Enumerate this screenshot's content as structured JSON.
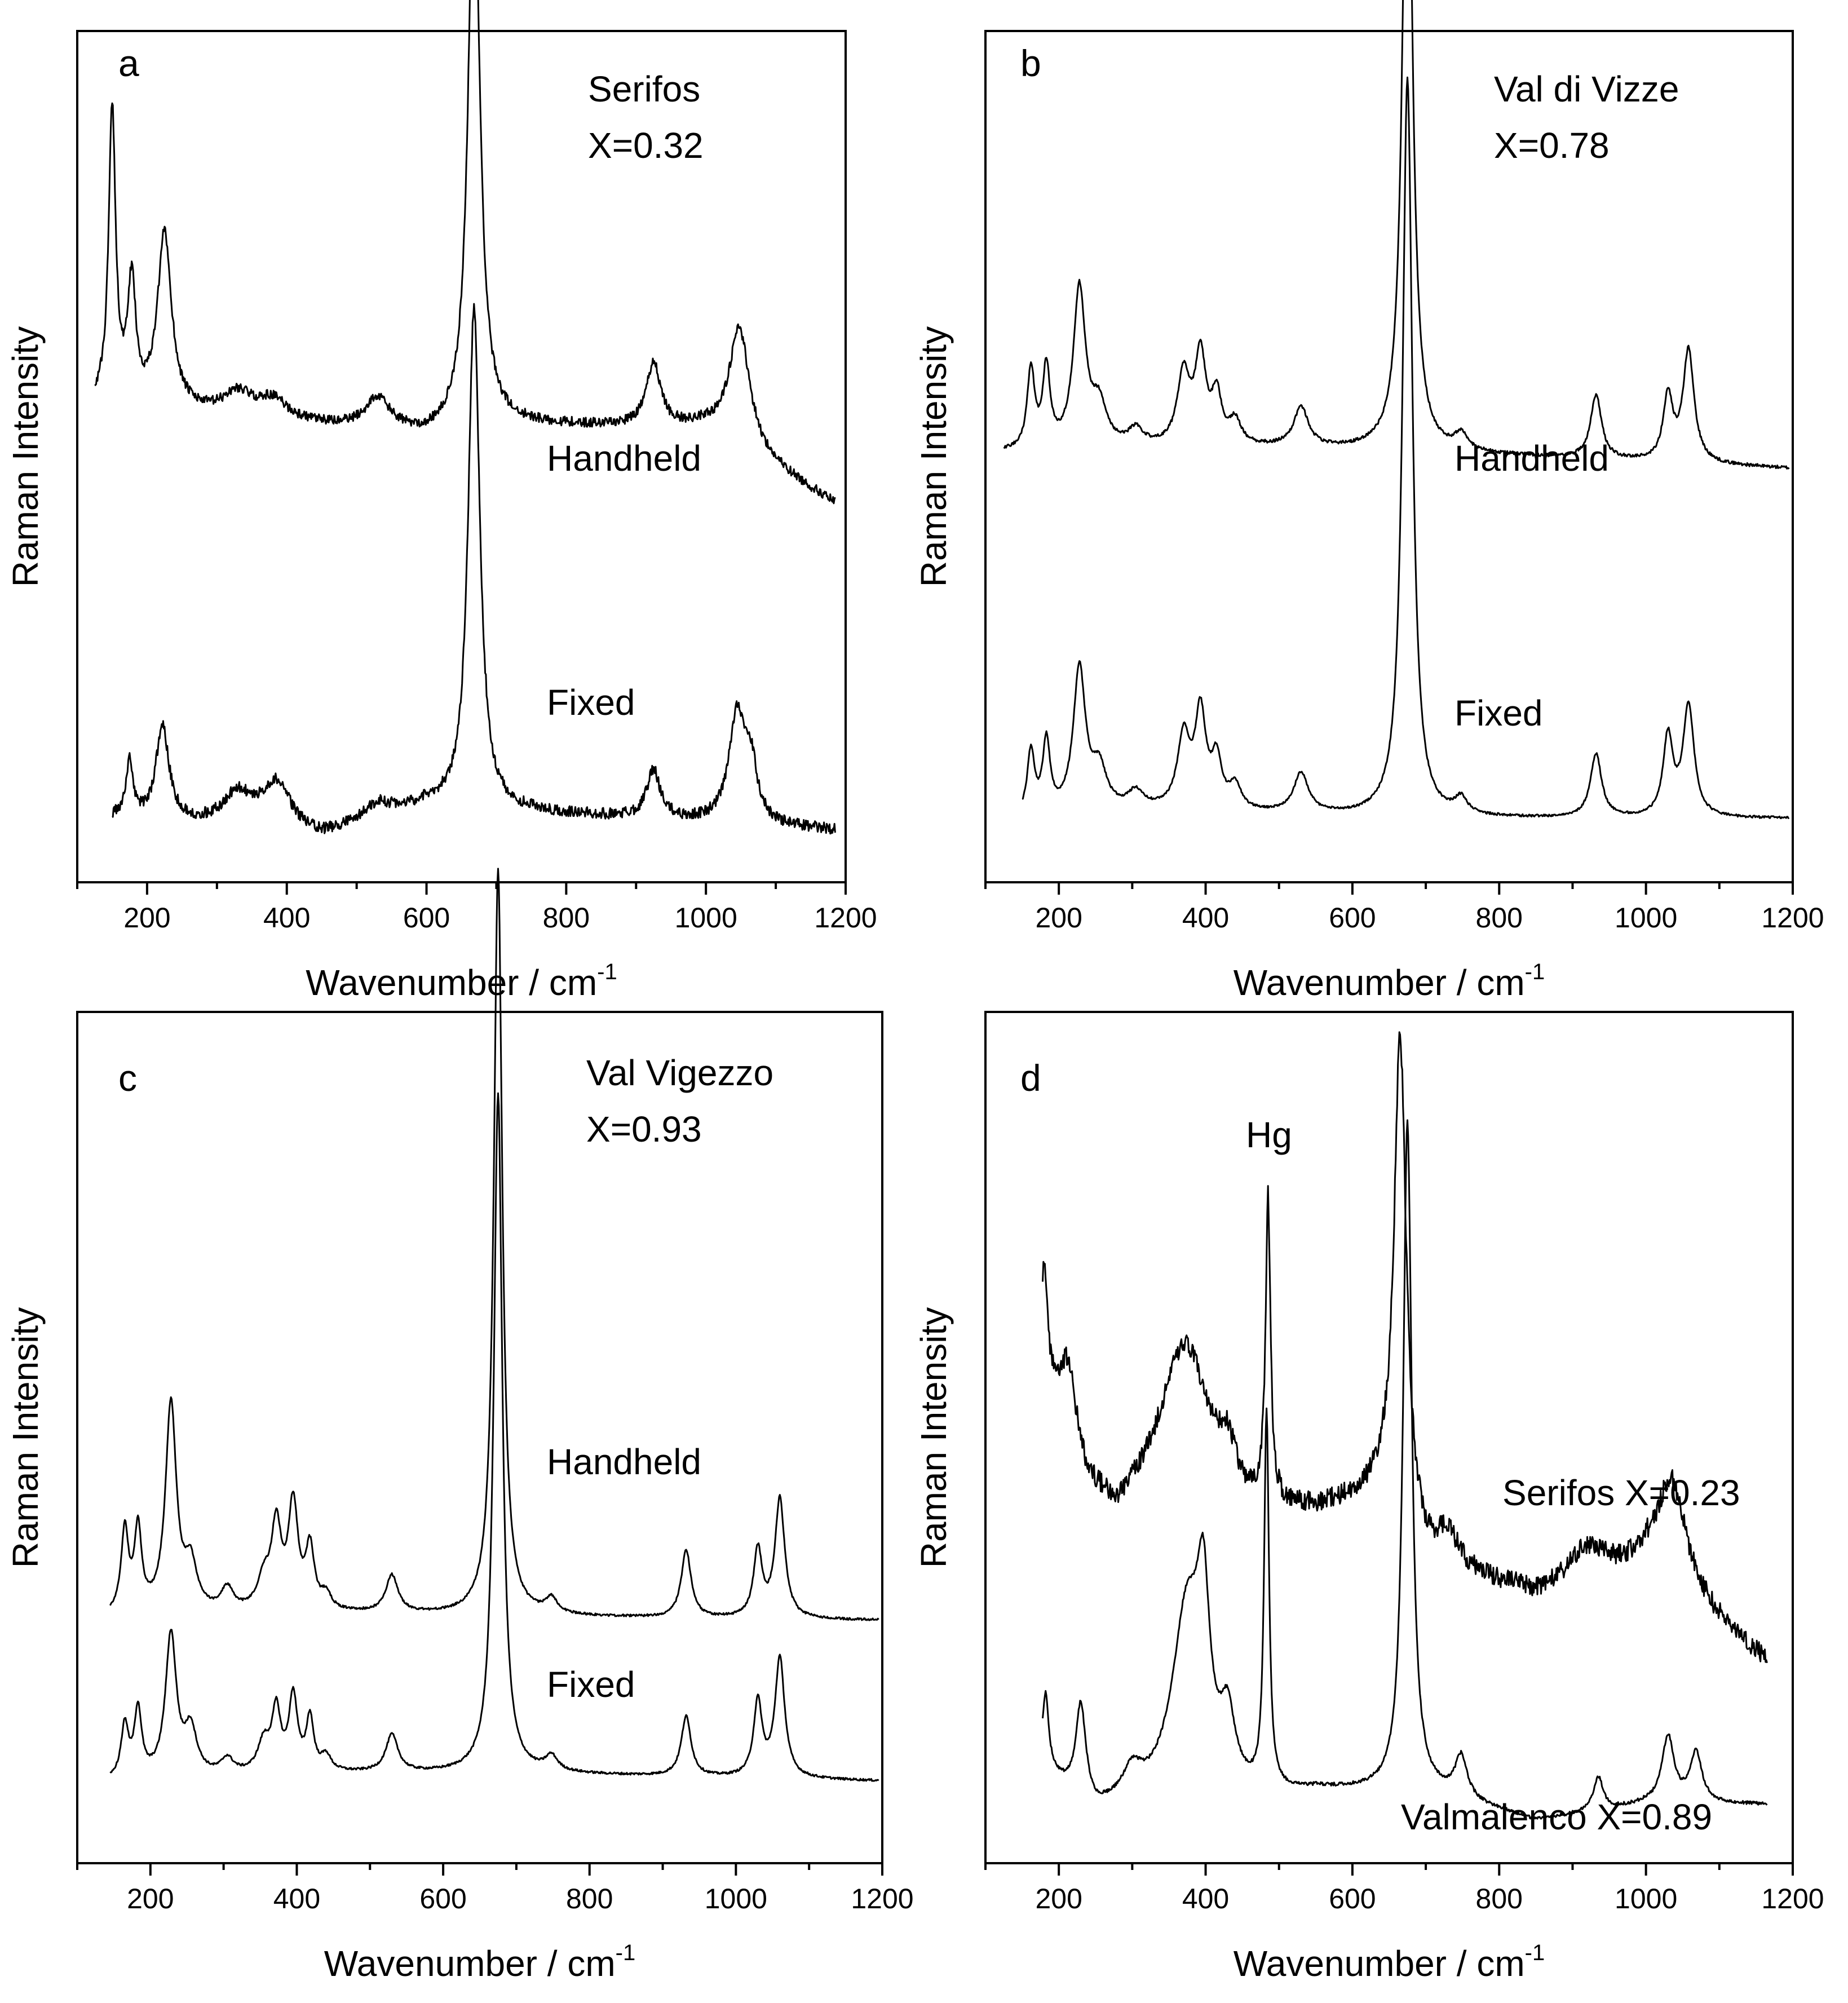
{
  "colors": {
    "line": "#000000",
    "background": "#ffffff"
  },
  "chart_data": [
    {
      "panel": "a",
      "type": "line",
      "xlabel": "Wavenumber / cm",
      "xlabel_sup": "-1",
      "ylabel": "Raman Intensity",
      "xlim": [
        100,
        1200
      ],
      "xticks": [
        200,
        400,
        600,
        800,
        1000,
        1200
      ],
      "annotations": [
        "Serifos",
        "X=0.32"
      ],
      "series": [
        {
          "name": "Handheld",
          "x_range": [
            125,
            1185
          ],
          "noise": 0.006,
          "baseline": [
            [
              125,
              0.58
            ],
            [
              300,
              0.565
            ],
            [
              600,
              0.54
            ],
            [
              700,
              0.555
            ],
            [
              1000,
              0.55
            ],
            [
              1185,
              0.455
            ]
          ],
          "peaks": [
            [
              150,
              0.37,
              6
            ],
            [
              178,
              0.15,
              7
            ],
            [
              225,
              0.22,
              12
            ],
            [
              330,
              0.03,
              25
            ],
            [
              380,
              0.025,
              25
            ],
            [
              530,
              0.04,
              22
            ],
            [
              668,
              0.73,
              10
            ],
            [
              925,
              0.08,
              12
            ],
            [
              1048,
              0.15,
              18
            ]
          ]
        },
        {
          "name": "Fixed",
          "x_range": [
            150,
            1185
          ],
          "noise": 0.007,
          "baseline": [
            [
              150,
              0.06
            ],
            [
              300,
              0.05
            ],
            [
              450,
              0.035
            ],
            [
              600,
              0.075
            ],
            [
              700,
              0.07
            ],
            [
              1185,
              0.045
            ]
          ],
          "peaks": [
            [
              175,
              0.07,
              6
            ],
            [
              222,
              0.12,
              11
            ],
            [
              330,
              0.04,
              25
            ],
            [
              385,
              0.06,
              25
            ],
            [
              530,
              0.02,
              25
            ],
            [
              668,
              0.63,
              10
            ],
            [
              925,
              0.06,
              12
            ],
            [
              1045,
              0.14,
              14
            ],
            [
              1065,
              0.06,
              10
            ]
          ]
        }
      ]
    },
    {
      "panel": "b",
      "type": "line",
      "xlabel": "Wavenumber / cm",
      "xlabel_sup": "-1",
      "ylabel": "Raman Intensity",
      "xlim": [
        100,
        1200
      ],
      "xticks": [
        200,
        400,
        600,
        800,
        1000,
        1200
      ],
      "annotations": [
        "Val di Vizze",
        "X=0.78"
      ],
      "series": [
        {
          "name": "Handheld",
          "x_range": [
            125,
            1195
          ],
          "noise": 0.002,
          "baseline": [
            [
              125,
              0.52
            ],
            [
              300,
              0.525
            ],
            [
              500,
              0.525
            ],
            [
              700,
              0.52
            ],
            [
              1195,
              0.5
            ]
          ],
          "peaks": [
            [
              162,
              0.1,
              6
            ],
            [
              183,
              0.1,
              6
            ],
            [
              228,
              0.2,
              10
            ],
            [
              255,
              0.05,
              12
            ],
            [
              305,
              0.02,
              12
            ],
            [
              370,
              0.09,
              10
            ],
            [
              393,
              0.11,
              9
            ],
            [
              415,
              0.06,
              8
            ],
            [
              440,
              0.03,
              10
            ],
            [
              530,
              0.05,
              12
            ],
            [
              675,
              0.9,
              8
            ],
            [
              748,
              0.02,
              10
            ],
            [
              932,
              0.08,
              9
            ],
            [
              1030,
              0.08,
              8
            ],
            [
              1058,
              0.14,
              9
            ]
          ]
        },
        {
          "name": "Fixed",
          "x_range": [
            150,
            1195
          ],
          "noise": 0.0015,
          "baseline": [
            [
              150,
              0.06
            ],
            [
              300,
              0.07
            ],
            [
              500,
              0.065
            ],
            [
              700,
              0.06
            ],
            [
              1195,
              0.06
            ]
          ],
          "peaks": [
            [
              162,
              0.08,
              6
            ],
            [
              183,
              0.09,
              6
            ],
            [
              228,
              0.18,
              10
            ],
            [
              255,
              0.05,
              12
            ],
            [
              305,
              0.02,
              12
            ],
            [
              370,
              0.09,
              10
            ],
            [
              393,
              0.12,
              9
            ],
            [
              415,
              0.06,
              8
            ],
            [
              440,
              0.03,
              10
            ],
            [
              530,
              0.05,
              12
            ],
            [
              675,
              0.93,
              8
            ],
            [
              748,
              0.02,
              10
            ],
            [
              932,
              0.08,
              9
            ],
            [
              1030,
              0.1,
              8
            ],
            [
              1058,
              0.14,
              9
            ]
          ]
        }
      ]
    },
    {
      "panel": "c",
      "type": "line",
      "xlabel": "Wavenumber / cm",
      "xlabel_sup": "-1",
      "ylabel": "Raman Intensity",
      "xlim": [
        100,
        1200
      ],
      "xticks": [
        200,
        400,
        600,
        800,
        1000,
        1200
      ],
      "annotations": [
        "Val Vigezzo",
        "X=0.93"
      ],
      "series": [
        {
          "name": "Handheld",
          "x_range": [
            145,
            1195
          ],
          "noise": 0.0015,
          "baseline": [
            [
              145,
              0.31
            ],
            [
              400,
              0.315
            ],
            [
              700,
              0.31
            ],
            [
              1195,
              0.305
            ]
          ],
          "peaks": [
            [
              165,
              0.11,
              6
            ],
            [
              183,
              0.11,
              6
            ],
            [
              228,
              0.28,
              9
            ],
            [
              255,
              0.06,
              10
            ],
            [
              305,
              0.03,
              10
            ],
            [
              355,
              0.04,
              10
            ],
            [
              372,
              0.11,
              8
            ],
            [
              395,
              0.14,
              8
            ],
            [
              418,
              0.08,
              7
            ],
            [
              440,
              0.02,
              8
            ],
            [
              530,
              0.05,
              10
            ],
            [
              675,
              1.0,
              7
            ],
            [
              748,
              0.02,
              10
            ],
            [
              932,
              0.09,
              8
            ],
            [
              1030,
              0.09,
              7
            ],
            [
              1060,
              0.16,
              8
            ]
          ]
        },
        {
          "name": "Fixed",
          "x_range": [
            145,
            1195
          ],
          "noise": 0.0015,
          "baseline": [
            [
              145,
              0.09
            ],
            [
              400,
              0.1
            ],
            [
              700,
              0.1
            ],
            [
              1195,
              0.09
            ]
          ],
          "peaks": [
            [
              165,
              0.07,
              6
            ],
            [
              183,
              0.09,
              6
            ],
            [
              228,
              0.19,
              9
            ],
            [
              255,
              0.06,
              10
            ],
            [
              305,
              0.02,
              10
            ],
            [
              355,
              0.04,
              10
            ],
            [
              372,
              0.08,
              7
            ],
            [
              395,
              0.1,
              7
            ],
            [
              418,
              0.07,
              6
            ],
            [
              440,
              0.02,
              8
            ],
            [
              530,
              0.05,
              10
            ],
            [
              675,
              0.91,
              7
            ],
            [
              748,
              0.02,
              10
            ],
            [
              932,
              0.08,
              8
            ],
            [
              1030,
              0.1,
              7
            ],
            [
              1060,
              0.16,
              8
            ]
          ]
        }
      ]
    },
    {
      "panel": "d",
      "type": "line",
      "xlabel": "Wavenumber / cm",
      "xlabel_sup": "-1",
      "ylabel": "Raman Intensity",
      "xlim": [
        100,
        1200
      ],
      "xticks": [
        200,
        400,
        600,
        800,
        1000,
        1200
      ],
      "annotations": [
        "Hg"
      ],
      "series": [
        {
          "name": "Serifos X=0.23",
          "x_range": [
            178,
            1165
          ],
          "noise": 0.012,
          "baseline": [
            [
              178,
              0.56
            ],
            [
              240,
              0.43
            ],
            [
              280,
              0.4
            ],
            [
              350,
              0.46
            ],
            [
              450,
              0.4
            ],
            [
              550,
              0.4
            ],
            [
              640,
              0.42
            ],
            [
              700,
              0.34
            ],
            [
              850,
              0.3
            ],
            [
              1000,
              0.33
            ],
            [
              1165,
              0.22
            ]
          ],
          "peaks": [
            [
              180,
              0.13,
              5
            ],
            [
              213,
              0.09,
              12
            ],
            [
              375,
              0.15,
              35
            ],
            [
              430,
              0.05,
              15
            ],
            [
              485,
              0.36,
              4
            ],
            [
              665,
              0.58,
              10
            ],
            [
              730,
              0.04,
              15
            ],
            [
              1035,
              0.13,
              25
            ],
            [
              920,
              0.04,
              30
            ]
          ]
        },
        {
          "name": "Valmalenco X=0.89",
          "x_range": [
            178,
            1165
          ],
          "noise": 0.002,
          "baseline": [
            [
              178,
              0.09
            ],
            [
              250,
              0.04
            ],
            [
              300,
              0.05
            ],
            [
              400,
              0.05
            ],
            [
              480,
              0.055
            ],
            [
              550,
              0.065
            ],
            [
              700,
              0.065
            ],
            [
              850,
              0.03
            ],
            [
              1000,
              0.05
            ],
            [
              1165,
              0.05
            ]
          ],
          "peaks": [
            [
              182,
              0.09,
              5
            ],
            [
              230,
              0.11,
              8
            ],
            [
              300,
              0.03,
              15
            ],
            [
              375,
              0.23,
              25
            ],
            [
              397,
              0.18,
              10
            ],
            [
              430,
              0.08,
              12
            ],
            [
              483,
              0.45,
              4
            ],
            [
              675,
              0.8,
              7
            ],
            [
              748,
              0.05,
              10
            ],
            [
              935,
              0.04,
              8
            ],
            [
              1030,
              0.08,
              10
            ],
            [
              1068,
              0.06,
              10
            ]
          ]
        }
      ]
    }
  ]
}
